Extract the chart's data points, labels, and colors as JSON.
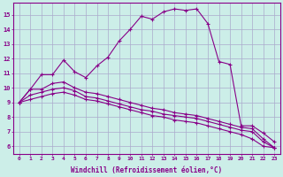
{
  "xlabel": "Windchill (Refroidissement éolien,°C)",
  "xlim": [
    -0.5,
    23.5
  ],
  "ylim": [
    5.5,
    15.8
  ],
  "yticks": [
    6,
    7,
    8,
    9,
    10,
    11,
    12,
    13,
    14,
    15
  ],
  "xticks": [
    0,
    1,
    2,
    3,
    4,
    5,
    6,
    7,
    8,
    9,
    10,
    11,
    12,
    13,
    14,
    15,
    16,
    17,
    18,
    19,
    20,
    21,
    22,
    23
  ],
  "background_color": "#cceee8",
  "grid_color": "#aaaacc",
  "line_color": "#880088",
  "line1": [
    9.0,
    9.9,
    10.9,
    10.9,
    11.9,
    11.1,
    10.7,
    11.5,
    12.1,
    13.2,
    14.0,
    14.9,
    14.7,
    15.2,
    15.4,
    15.3,
    15.4,
    14.4,
    11.8,
    11.6,
    7.4,
    7.4,
    6.9,
    6.3
  ],
  "line2": [
    9.0,
    9.9,
    9.9,
    10.3,
    10.4,
    10.0,
    9.7,
    9.6,
    9.4,
    9.2,
    9.0,
    8.8,
    8.6,
    8.5,
    8.3,
    8.2,
    8.1,
    7.9,
    7.7,
    7.5,
    7.3,
    7.2,
    6.5,
    5.9
  ],
  "line3": [
    9.0,
    9.5,
    9.7,
    9.9,
    10.0,
    9.8,
    9.4,
    9.3,
    9.1,
    8.9,
    8.7,
    8.5,
    8.4,
    8.2,
    8.1,
    8.0,
    7.9,
    7.7,
    7.5,
    7.3,
    7.1,
    7.0,
    6.3,
    5.9
  ],
  "line4": [
    9.0,
    9.2,
    9.4,
    9.6,
    9.7,
    9.5,
    9.2,
    9.1,
    8.9,
    8.7,
    8.5,
    8.3,
    8.1,
    8.0,
    7.8,
    7.7,
    7.6,
    7.4,
    7.2,
    7.0,
    6.8,
    6.5,
    6.0,
    5.9
  ]
}
